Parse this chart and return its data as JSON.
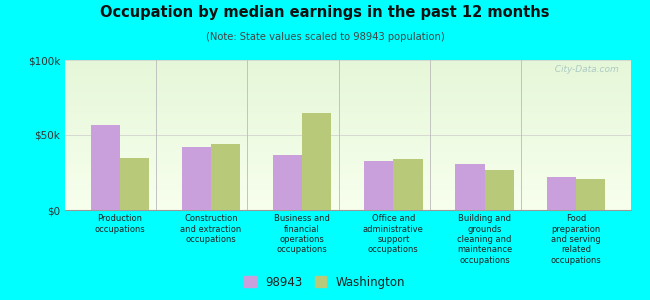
{
  "title": "Occupation by median earnings in the past 12 months",
  "subtitle": "(Note: State values scaled to 98943 population)",
  "categories": [
    "Production\noccupations",
    "Construction\nand extraction\noccupations",
    "Business and\nfinancial\noperations\noccupations",
    "Office and\nadministrative\nsupport\noccupations",
    "Building and\ngrounds\ncleaning and\nmaintenance\noccupations",
    "Food\npreparation\nand serving\nrelated\noccupations"
  ],
  "values_98943": [
    57000,
    42000,
    37000,
    33000,
    31000,
    22000
  ],
  "values_washington": [
    35000,
    44000,
    65000,
    34000,
    27000,
    21000
  ],
  "color_98943": "#c9a0dc",
  "color_washington": "#b8c97a",
  "background_color": "#00ffff",
  "ylim": [
    0,
    100000
  ],
  "yticks": [
    0,
    50000,
    100000
  ],
  "ytick_labels": [
    "$0",
    "$50k",
    "$100k"
  ],
  "legend_label_1": "98943",
  "legend_label_2": "Washington",
  "watermark": "  City-Data.com"
}
